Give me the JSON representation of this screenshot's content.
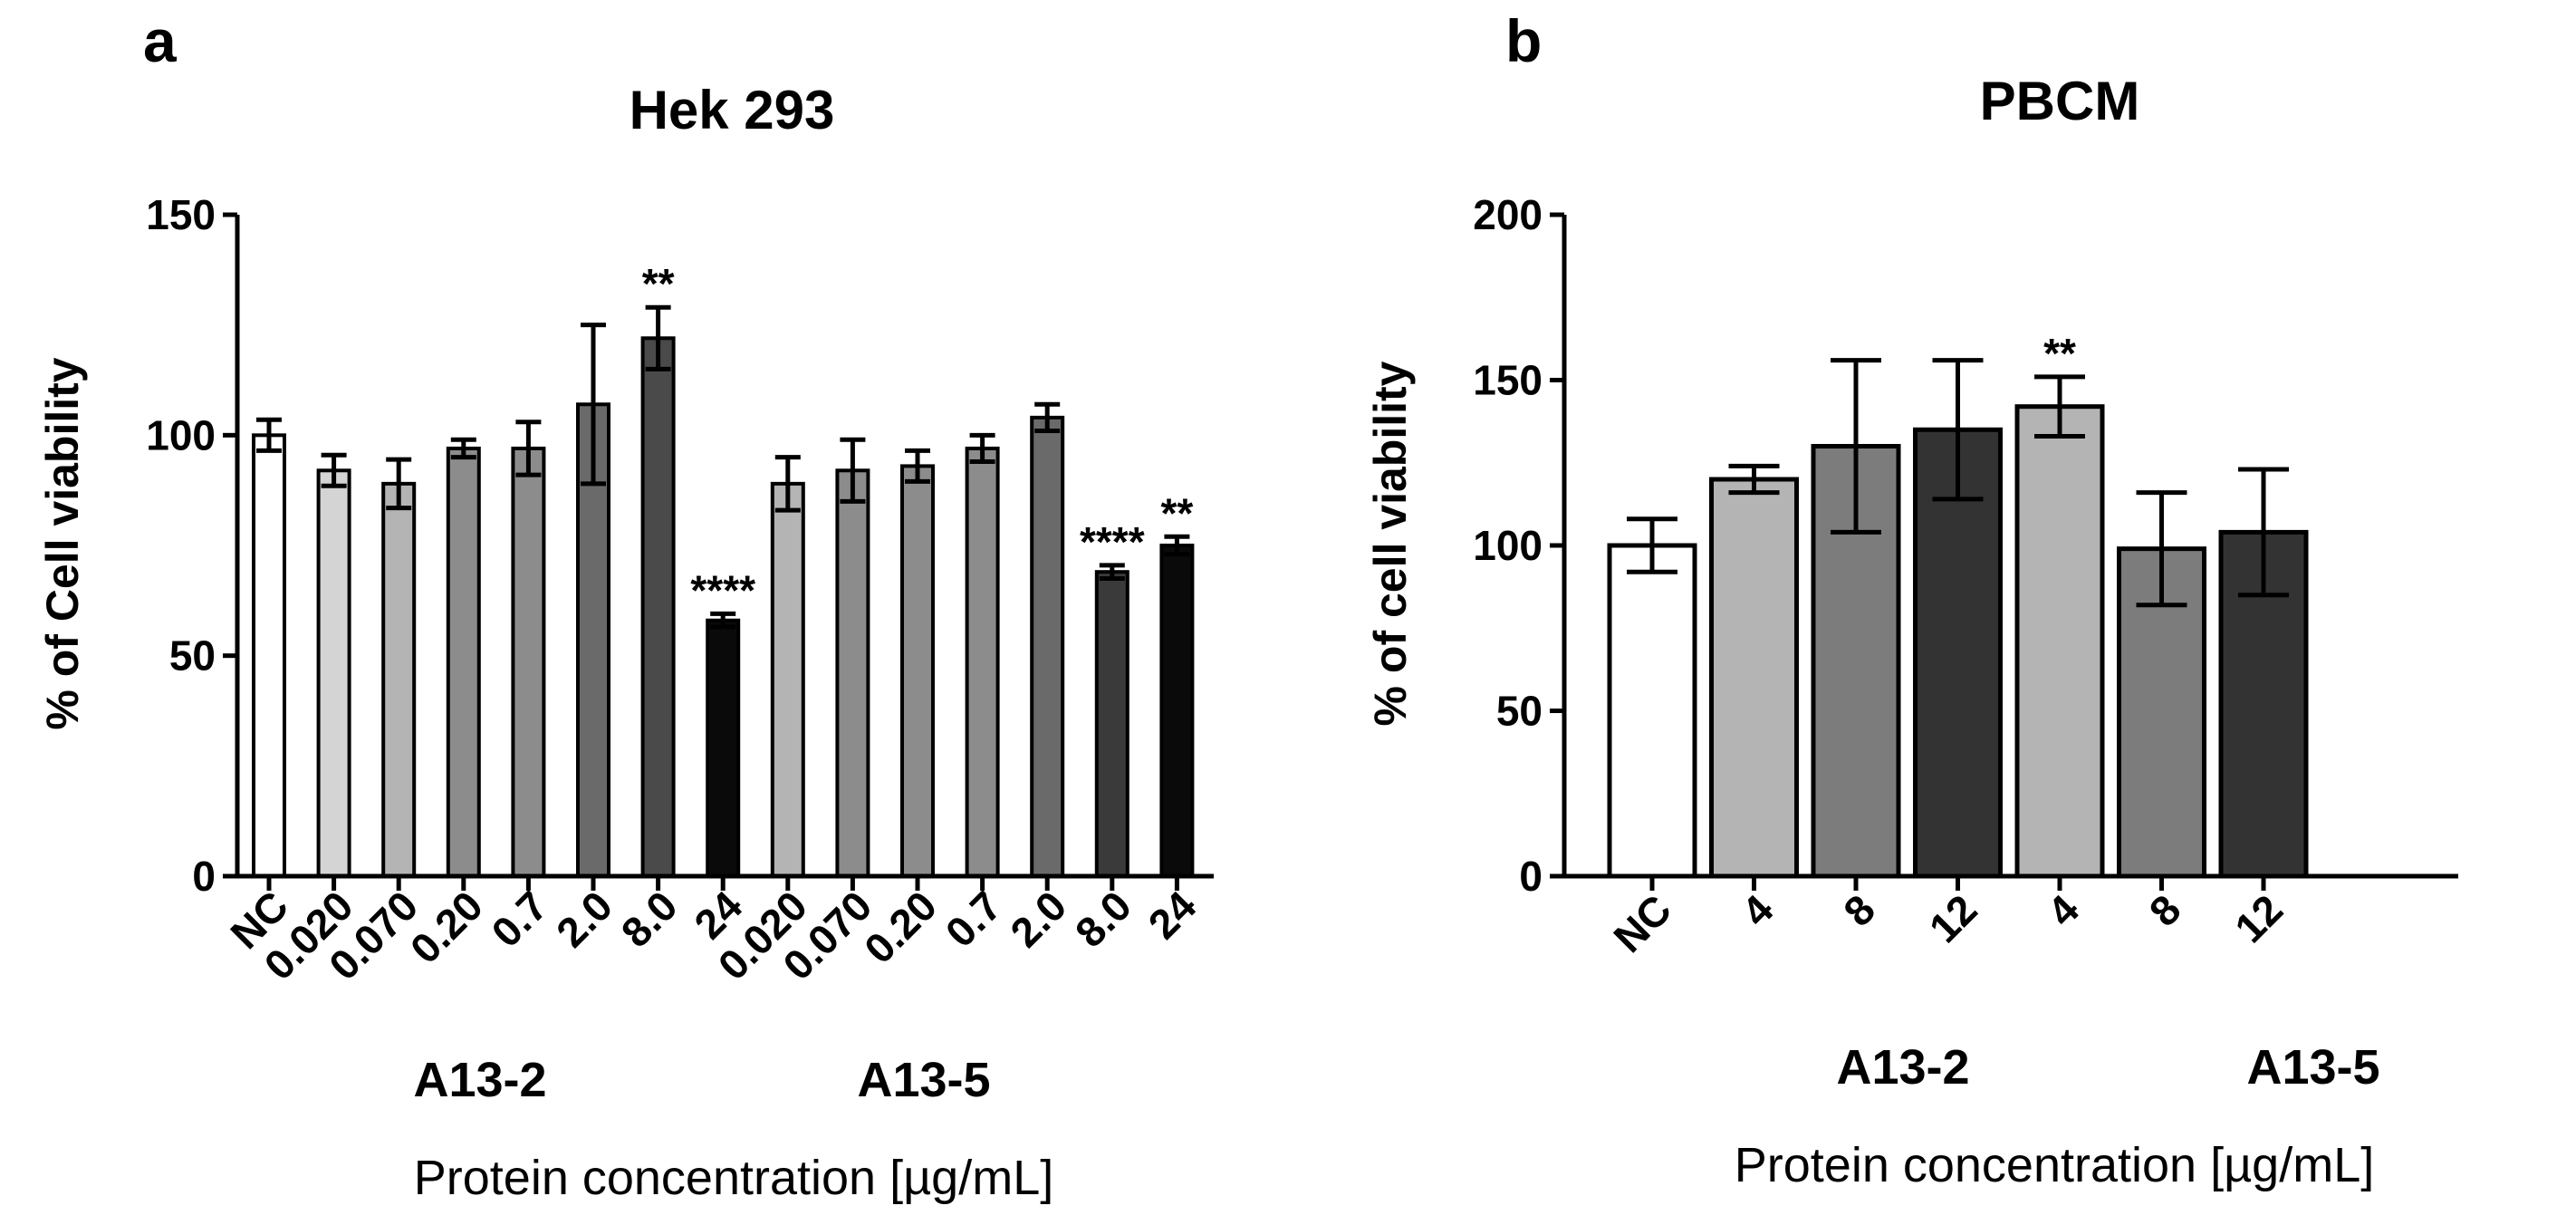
{
  "chart_data": [
    {
      "panel": "a",
      "type": "bar",
      "title": "Hek 293",
      "ylabel": "%  of Cell viability",
      "xlabel": "Protein concentration [µg/mL]",
      "ylim": [
        0,
        150
      ],
      "yticks": [
        "0",
        "50",
        "100",
        "150"
      ],
      "groups": [
        "A13-2",
        "A13-5"
      ],
      "bars": [
        {
          "label": "NC",
          "value": 100,
          "err": 3.5,
          "sig": "",
          "color": "#ffffff",
          "group": ""
        },
        {
          "label": "0.020",
          "value": 92,
          "err": 3.5,
          "sig": "",
          "color": "#d4d4d4",
          "group": "A13-2"
        },
        {
          "label": "0.070",
          "value": 89,
          "err": 5.5,
          "sig": "",
          "color": "#b4b4b4",
          "group": "A13-2"
        },
        {
          "label": "0.20",
          "value": 97,
          "err": 2,
          "sig": "",
          "color": "#8c8c8c",
          "group": "A13-2"
        },
        {
          "label": "0.7",
          "value": 97,
          "err": 6,
          "sig": "",
          "color": "#8c8c8c",
          "group": "A13-2"
        },
        {
          "label": "2.0",
          "value": 107,
          "err": 18,
          "sig": "",
          "color": "#6a6a6a",
          "group": "A13-2"
        },
        {
          "label": "8.0",
          "value": 122,
          "err": 7,
          "sig": "**",
          "color": "#4a4a4a",
          "group": "A13-2"
        },
        {
          "label": "24",
          "value": 58,
          "err": 1.5,
          "sig": "****",
          "color": "#0a0a0a",
          "group": "A13-2"
        },
        {
          "label": "0.020",
          "value": 89,
          "err": 6,
          "sig": "",
          "color": "#b4b4b4",
          "group": "A13-5"
        },
        {
          "label": "0.070",
          "value": 92,
          "err": 7,
          "sig": "",
          "color": "#8c8c8c",
          "group": "A13-5"
        },
        {
          "label": "0.20",
          "value": 93,
          "err": 3.5,
          "sig": "",
          "color": "#8c8c8c",
          "group": "A13-5"
        },
        {
          "label": "0.7",
          "value": 97,
          "err": 3,
          "sig": "",
          "color": "#8c8c8c",
          "group": "A13-5"
        },
        {
          "label": "2.0",
          "value": 104,
          "err": 3,
          "sig": "",
          "color": "#6a6a6a",
          "group": "A13-5"
        },
        {
          "label": "8.0",
          "value": 69,
          "err": 1.5,
          "sig": "****",
          "color": "#3a3a3a",
          "group": "A13-5"
        },
        {
          "label": "24",
          "value": 75,
          "err": 2,
          "sig": "**",
          "color": "#0a0a0a",
          "group": "A13-5"
        }
      ]
    },
    {
      "panel": "b",
      "type": "bar",
      "title": "PBCM",
      "ylabel": "% of cell viability",
      "xlabel": "Protein concentration [µg/mL]",
      "ylim": [
        0,
        200
      ],
      "yticks": [
        "0",
        "50",
        "100",
        "150",
        "200"
      ],
      "groups": [
        "A13-2",
        "A13-5"
      ],
      "bars": [
        {
          "label": "NC",
          "value": 100,
          "err": 8,
          "sig": "",
          "color": "#ffffff",
          "group": ""
        },
        {
          "label": "4",
          "value": 120,
          "err": 4,
          "sig": "",
          "color": "#b4b4b4",
          "group": "A13-2"
        },
        {
          "label": "8",
          "value": 130,
          "err": 26,
          "sig": "",
          "color": "#7c7c7c",
          "group": "A13-2"
        },
        {
          "label": "12",
          "value": 135,
          "err": 21,
          "sig": "",
          "color": "#333333",
          "group": "A13-2"
        },
        {
          "label": "4",
          "value": 142,
          "err": 9,
          "sig": "**",
          "color": "#b4b4b4",
          "group": "A13-5"
        },
        {
          "label": "8",
          "value": 99,
          "err": 17,
          "sig": "",
          "color": "#7c7c7c",
          "group": "A13-5"
        },
        {
          "label": "12",
          "value": 104,
          "err": 19,
          "sig": "",
          "color": "#333333",
          "group": "A13-5"
        }
      ]
    }
  ]
}
